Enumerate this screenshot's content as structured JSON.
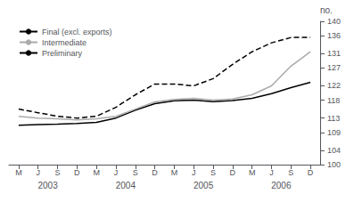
{
  "chart_data": {
    "type": "line",
    "ylabel": "no.",
    "categories": [
      "M",
      "J",
      "S",
      "D",
      "M",
      "J",
      "S",
      "D",
      "M",
      "J",
      "S",
      "D",
      "M",
      "J",
      "S",
      "D"
    ],
    "annotations": [
      "2003",
      "2004",
      "2005",
      "2006"
    ],
    "series": [
      {
        "name": "Final (excl. exports)",
        "color": "#000000",
        "line_style": "solid",
        "values": [
          111.0,
          111.2,
          111.3,
          111.5,
          111.8,
          113.0,
          115.2,
          117.0,
          117.8,
          118.0,
          117.6,
          117.9,
          118.5,
          119.8,
          121.5,
          123.0
        ]
      },
      {
        "name": "Intermediate",
        "color": "#aaaaaa",
        "line_style": "solid",
        "values": [
          113.5,
          113.0,
          112.8,
          112.5,
          112.8,
          113.5,
          115.5,
          117.5,
          118.2,
          118.5,
          118.0,
          118.3,
          119.5,
          122.0,
          127.5,
          131.5
        ]
      },
      {
        "name": "Preliminary",
        "color": "#000000",
        "line_style": "dashed",
        "values": [
          115.5,
          114.5,
          113.5,
          113.0,
          113.5,
          116.0,
          119.5,
          122.5,
          122.5,
          122.0,
          124.0,
          128.0,
          131.5,
          134.0,
          135.5,
          135.5
        ]
      }
    ],
    "ylim": [
      100,
      140
    ],
    "yticks": [
      100,
      104,
      109,
      113,
      118,
      122,
      127,
      131,
      136,
      140
    ],
    "grid": false,
    "legend": "upper left"
  }
}
